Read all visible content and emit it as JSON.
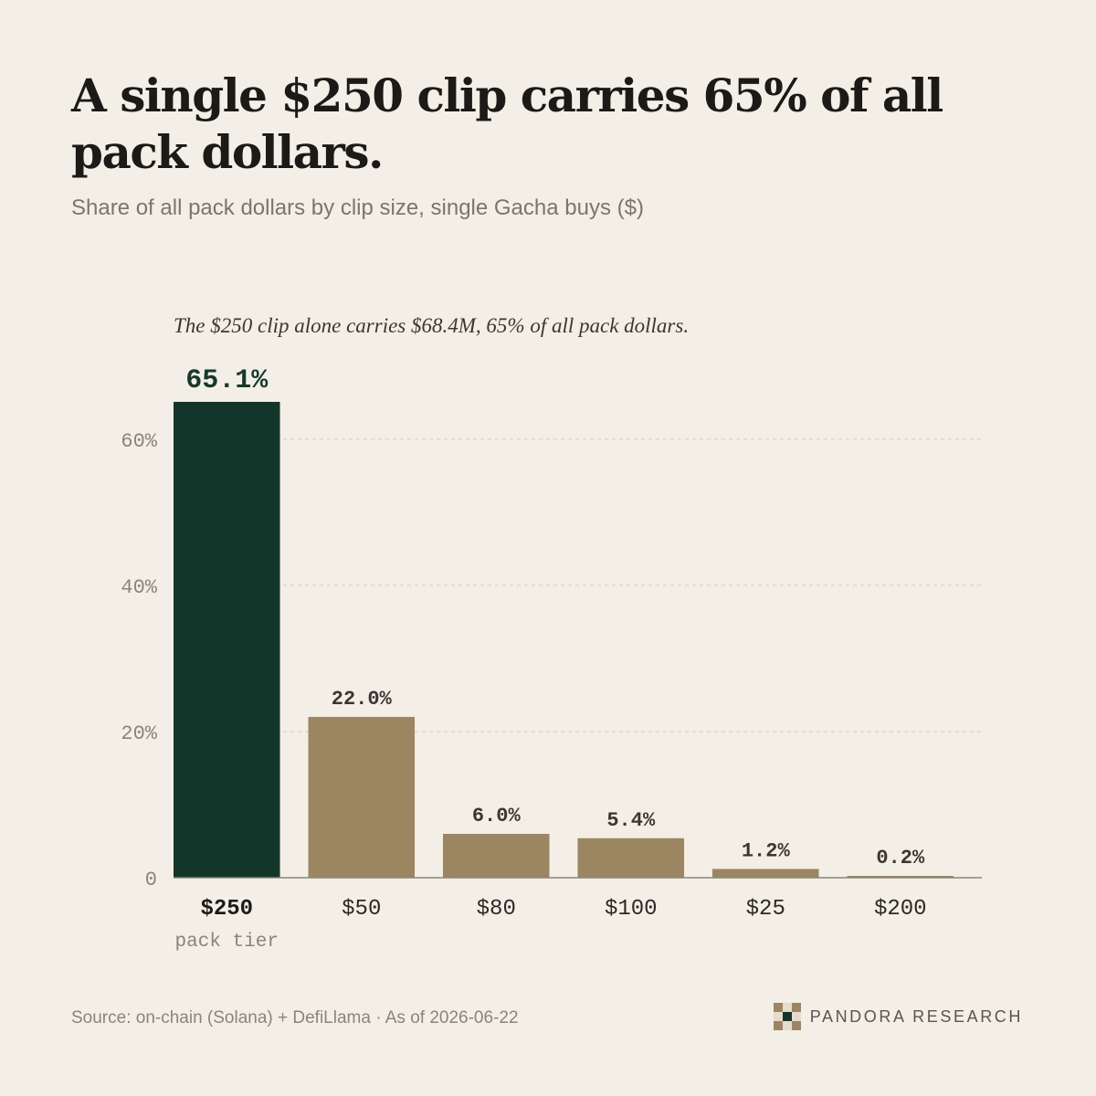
{
  "header": {
    "title": "A single $250 clip carries 65% of all pack dollars.",
    "subtitle": "Share of all pack dollars by clip size, single Gacha buys ($)"
  },
  "annotation": "The $250 clip alone carries $68.4M, 65% of all pack dollars.",
  "chart_data": {
    "type": "bar",
    "title": "A single $250 clip carries 65% of all pack dollars.",
    "subtitle": "Share of all pack dollars by clip size, single Gacha buys ($)",
    "categories": [
      "$250",
      "$50",
      "$80",
      "$100",
      "$25",
      "$200"
    ],
    "values": [
      65.1,
      22.0,
      6.0,
      5.4,
      1.2,
      0.2
    ],
    "value_labels": [
      "65.1%",
      "22.0%",
      "6.0%",
      "5.4%",
      "1.2%",
      "0.2%"
    ],
    "highlight_index": 0,
    "highlight_sublabel": "pack tier",
    "xlabel": "",
    "ylabel": "",
    "ylim": [
      0,
      65.1
    ],
    "yticks": [
      0,
      20,
      40,
      60
    ],
    "ytick_labels": [
      "0",
      "20%",
      "40%",
      "60%"
    ],
    "grid": true,
    "legend": "none",
    "colors": {
      "highlight": "#12372a",
      "default": "#9c8662"
    }
  },
  "footer": {
    "source": "Source: on-chain (Solana) + DefiLlama · As of 2026-06-22",
    "brand": "PANDORA RESEARCH"
  }
}
